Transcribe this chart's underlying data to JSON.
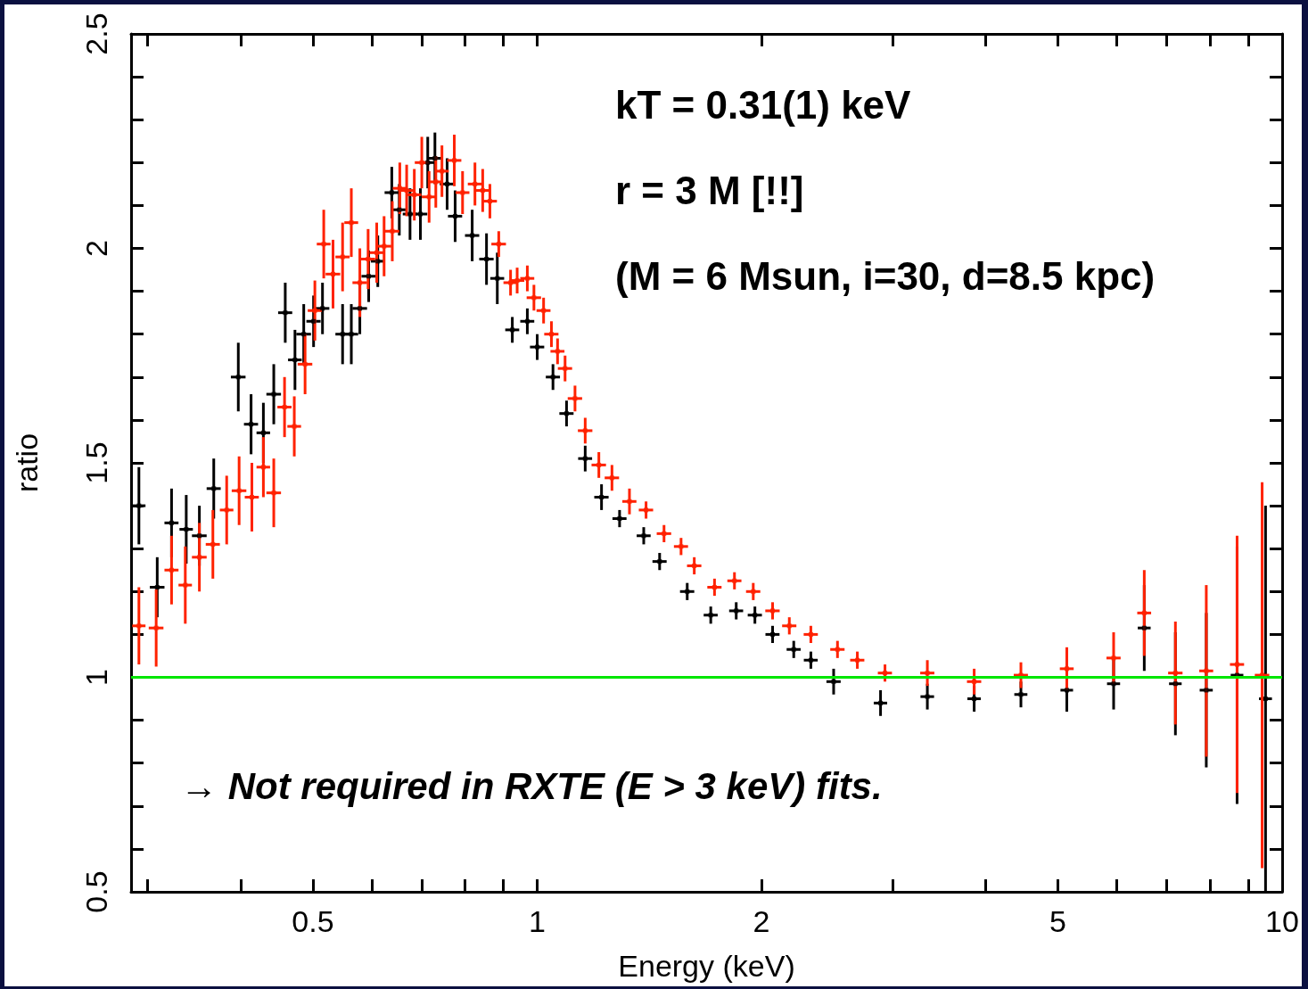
{
  "chart_data": {
    "type": "scatter",
    "xlabel": "Energy (keV)",
    "ylabel": "ratio",
    "log": "x",
    "xlim": [
      0.285,
      10
    ],
    "xticks": [
      {
        "value": 0.3,
        "label": null
      },
      {
        "value": 0.4,
        "label": null
      },
      0.5,
      {
        "value": 0.6,
        "label": null
      },
      {
        "value": 0.7,
        "label": null
      },
      {
        "value": 0.8,
        "label": null
      },
      {
        "value": 0.9,
        "label": null
      },
      1,
      2,
      {
        "value": 3,
        "label": null
      },
      {
        "value": 4,
        "label": null
      },
      5,
      {
        "value": 6,
        "label": null
      },
      {
        "value": 7,
        "label": null
      },
      {
        "value": 8,
        "label": null
      },
      {
        "value": 9,
        "label": null
      },
      10
    ],
    "ylim": [
      0.5,
      2.5
    ],
    "yticks": [
      0.5,
      {
        "value": 0.6,
        "label": null
      },
      {
        "value": 0.7,
        "label": null
      },
      {
        "value": 0.8,
        "label": null
      },
      {
        "value": 0.9,
        "label": null
      },
      1,
      {
        "value": 1.1,
        "label": null
      },
      {
        "value": 1.2,
        "label": null
      },
      {
        "value": 1.3,
        "label": null
      },
      {
        "value": 1.4,
        "label": null
      },
      1.5,
      {
        "value": 1.6,
        "label": null
      },
      {
        "value": 1.7,
        "label": null
      },
      {
        "value": 1.8,
        "label": null
      },
      {
        "value": 1.9,
        "label": null
      },
      2,
      {
        "value": 2.1,
        "label": null
      },
      {
        "value": 2.2,
        "label": null
      },
      {
        "value": 2.3,
        "label": null
      },
      {
        "value": 2.4,
        "label": null
      },
      2.5
    ],
    "ref_lines": [
      {
        "axis": "y",
        "value": 1,
        "color": "#00e600",
        "line_style": "solid"
      }
    ],
    "annotations": [
      "kT = 0.31(1) keV",
      "r = 3 M [!!]",
      "(M = 6 Msun, i=30, d=8.5 kpc)",
      "→ Not required in RXTE (E > 3 keV) fits."
    ],
    "series": [
      {
        "color": "#000000",
        "x": [
          0.292,
          0.309,
          0.323,
          0.338,
          0.352,
          0.368,
          0.397,
          0.413,
          0.429,
          0.443,
          0.459,
          0.473,
          0.486,
          0.501,
          0.515,
          0.548,
          0.563,
          0.578,
          0.594,
          0.611,
          0.638,
          0.653,
          0.675,
          0.697,
          0.713,
          0.729,
          0.757,
          0.776,
          0.818,
          0.855,
          0.884,
          0.926,
          0.97,
          1.0,
          1.05,
          1.095,
          1.16,
          1.22,
          1.29,
          1.39,
          1.46,
          1.59,
          1.71,
          1.85,
          1.96,
          2.07,
          2.21,
          2.33,
          2.5,
          2.89,
          3.34,
          3.86,
          4.46,
          5.14,
          5.94,
          6.53,
          7.19,
          7.91,
          8.7,
          9.5
        ],
        "values": [
          1.4,
          1.21,
          1.36,
          1.345,
          1.33,
          1.44,
          1.7,
          1.59,
          1.57,
          1.66,
          1.85,
          1.74,
          1.8,
          1.83,
          1.86,
          1.8,
          1.8,
          1.86,
          1.935,
          1.97,
          2.13,
          2.09,
          2.08,
          2.08,
          2.2,
          2.21,
          2.15,
          2.075,
          2.03,
          1.975,
          1.93,
          1.81,
          1.83,
          1.77,
          1.7,
          1.615,
          1.51,
          1.42,
          1.37,
          1.33,
          1.27,
          1.2,
          1.145,
          1.155,
          1.145,
          1.1,
          1.065,
          1.04,
          0.99,
          0.94,
          0.955,
          0.95,
          0.96,
          0.97,
          0.985,
          1.115,
          0.985,
          0.97,
          1.005,
          0.95
        ],
        "errors": [
          0.09,
          0.07,
          0.08,
          0.08,
          0.07,
          0.07,
          0.08,
          0.07,
          0.07,
          0.07,
          0.07,
          0.07,
          0.07,
          0.06,
          0.06,
          0.07,
          0.07,
          0.06,
          0.06,
          0.06,
          0.06,
          0.06,
          0.06,
          0.06,
          0.06,
          0.06,
          0.06,
          0.06,
          0.06,
          0.06,
          0.06,
          0.03,
          0.03,
          0.03,
          0.03,
          0.03,
          0.03,
          0.03,
          0.02,
          0.02,
          0.02,
          0.02,
          0.02,
          0.02,
          0.02,
          0.02,
          0.02,
          0.02,
          0.03,
          0.03,
          0.03,
          0.03,
          0.03,
          0.05,
          0.06,
          0.1,
          0.12,
          0.18,
          0.3,
          0.45
        ],
        "xerrors": [
          0.006,
          0.007,
          0.007,
          0.007,
          0.008,
          0.008,
          0.009,
          0.009,
          0.009,
          0.01,
          0.01,
          0.01,
          0.011,
          0.011,
          0.011,
          0.012,
          0.012,
          0.013,
          0.013,
          0.013,
          0.014,
          0.014,
          0.015,
          0.015,
          0.016,
          0.016,
          0.017,
          0.017,
          0.018,
          0.019,
          0.019,
          0.02,
          0.021,
          0.022,
          0.023,
          0.024,
          0.025,
          0.027,
          0.028,
          0.03,
          0.032,
          0.035,
          0.037,
          0.04,
          0.043,
          0.045,
          0.048,
          0.05,
          0.055,
          0.06,
          0.07,
          0.08,
          0.09,
          0.1,
          0.12,
          0.13,
          0.14,
          0.16,
          0.17,
          0.19
        ]
      },
      {
        "color": "#ff2200",
        "x": [
          0.292,
          0.308,
          0.323,
          0.337,
          0.352,
          0.367,
          0.383,
          0.398,
          0.414,
          0.429,
          0.443,
          0.458,
          0.472,
          0.488,
          0.503,
          0.517,
          0.532,
          0.548,
          0.563,
          0.578,
          0.593,
          0.609,
          0.623,
          0.639,
          0.654,
          0.668,
          0.684,
          0.7,
          0.716,
          0.731,
          0.745,
          0.774,
          0.794,
          0.825,
          0.845,
          0.864,
          0.888,
          0.921,
          0.94,
          0.97,
          0.99,
          1.02,
          1.045,
          1.065,
          1.09,
          1.124,
          1.16,
          1.21,
          1.26,
          1.33,
          1.4,
          1.48,
          1.56,
          1.625,
          1.73,
          1.84,
          1.95,
          2.07,
          2.18,
          2.33,
          2.53,
          2.69,
          2.93,
          3.34,
          3.86,
          4.46,
          5.14,
          5.94,
          6.53,
          7.19,
          7.91,
          8.7,
          9.4
        ],
        "values": [
          1.12,
          1.115,
          1.25,
          1.215,
          1.28,
          1.31,
          1.39,
          1.435,
          1.42,
          1.49,
          1.43,
          1.63,
          1.585,
          1.73,
          1.855,
          2.01,
          1.94,
          1.98,
          2.06,
          1.92,
          1.975,
          1.99,
          2.005,
          2.04,
          2.14,
          2.135,
          2.125,
          2.2,
          2.12,
          2.155,
          2.18,
          2.205,
          2.13,
          2.15,
          2.135,
          2.11,
          2.01,
          1.92,
          1.925,
          1.93,
          1.885,
          1.855,
          1.8,
          1.76,
          1.72,
          1.65,
          1.575,
          1.495,
          1.465,
          1.41,
          1.39,
          1.335,
          1.305,
          1.26,
          1.21,
          1.225,
          1.2,
          1.155,
          1.12,
          1.1,
          1.065,
          1.04,
          1.01,
          1.01,
          0.99,
          1.005,
          1.02,
          1.045,
          1.15,
          1.01,
          1.015,
          1.03,
          1.005
        ],
        "errors": [
          0.09,
          0.09,
          0.08,
          0.09,
          0.08,
          0.08,
          0.08,
          0.08,
          0.08,
          0.07,
          0.08,
          0.07,
          0.07,
          0.07,
          0.07,
          0.08,
          0.08,
          0.08,
          0.08,
          0.08,
          0.07,
          0.07,
          0.07,
          0.07,
          0.06,
          0.06,
          0.06,
          0.06,
          0.06,
          0.06,
          0.06,
          0.06,
          0.05,
          0.05,
          0.05,
          0.04,
          0.03,
          0.03,
          0.03,
          0.03,
          0.03,
          0.03,
          0.03,
          0.03,
          0.03,
          0.03,
          0.03,
          0.03,
          0.03,
          0.03,
          0.02,
          0.02,
          0.02,
          0.02,
          0.02,
          0.02,
          0.02,
          0.02,
          0.02,
          0.02,
          0.02,
          0.02,
          0.02,
          0.03,
          0.03,
          0.03,
          0.05,
          0.06,
          0.1,
          0.12,
          0.2,
          0.3,
          0.45
        ],
        "xerrors": [
          0.006,
          0.007,
          0.007,
          0.007,
          0.008,
          0.008,
          0.008,
          0.009,
          0.009,
          0.009,
          0.01,
          0.01,
          0.01,
          0.011,
          0.011,
          0.011,
          0.012,
          0.012,
          0.012,
          0.013,
          0.013,
          0.013,
          0.014,
          0.014,
          0.014,
          0.015,
          0.015,
          0.015,
          0.016,
          0.016,
          0.016,
          0.017,
          0.017,
          0.018,
          0.019,
          0.019,
          0.02,
          0.02,
          0.021,
          0.021,
          0.022,
          0.022,
          0.023,
          0.023,
          0.024,
          0.025,
          0.026,
          0.027,
          0.028,
          0.029,
          0.031,
          0.033,
          0.034,
          0.036,
          0.038,
          0.04,
          0.043,
          0.046,
          0.048,
          0.051,
          0.056,
          0.059,
          0.064,
          0.073,
          0.085,
          0.098,
          0.11,
          0.13,
          0.14,
          0.16,
          0.17,
          0.19,
          0.21
        ]
      }
    ]
  }
}
